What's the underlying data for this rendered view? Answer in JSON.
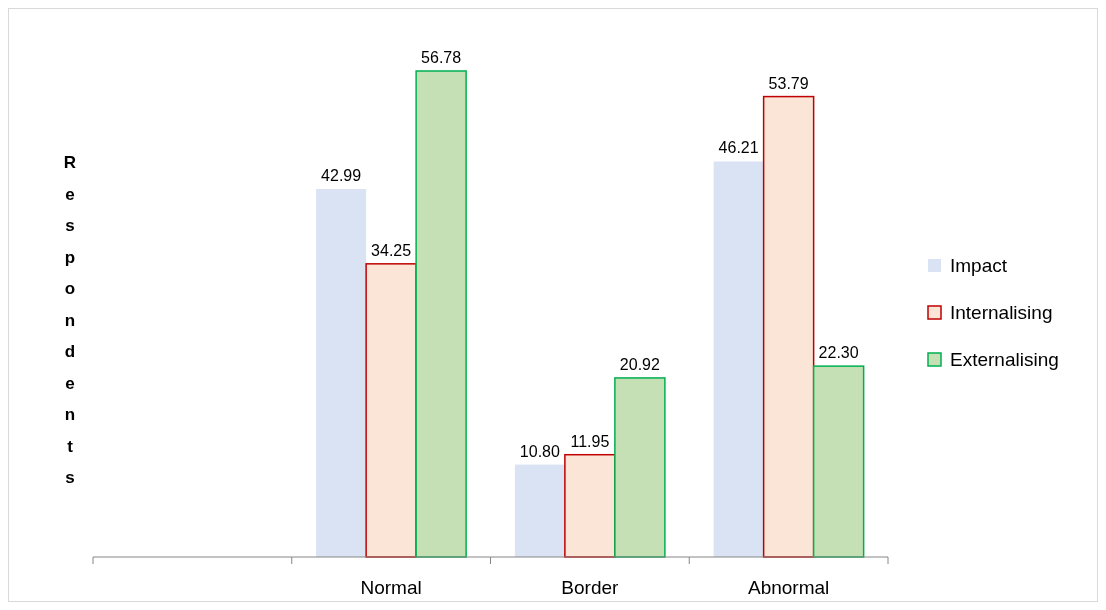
{
  "chart_data": {
    "type": "bar",
    "ylabel": "Respondents",
    "categories": [
      null,
      "Normal",
      "Border",
      "Abnormal"
    ],
    "series": [
      {
        "name": "Impact",
        "color": "#dae3f3",
        "values": [
          null,
          42.99,
          10.8,
          46.21
        ],
        "value_labels": [
          null,
          "42.99",
          "10.80",
          "46.21"
        ]
      },
      {
        "name": "Internalising",
        "color": "#fbe5d6",
        "values": [
          null,
          34.25,
          11.95,
          53.79
        ],
        "value_labels": [
          null,
          "34.25",
          "11.95",
          "53.79"
        ]
      },
      {
        "name": "Externalising",
        "color": "#c5e0b4",
        "values": [
          null,
          56.78,
          20.92,
          22.3
        ],
        "value_labels": [
          null,
          "56.78",
          "20.92",
          "22.30"
        ]
      }
    ],
    "legend": "right"
  }
}
